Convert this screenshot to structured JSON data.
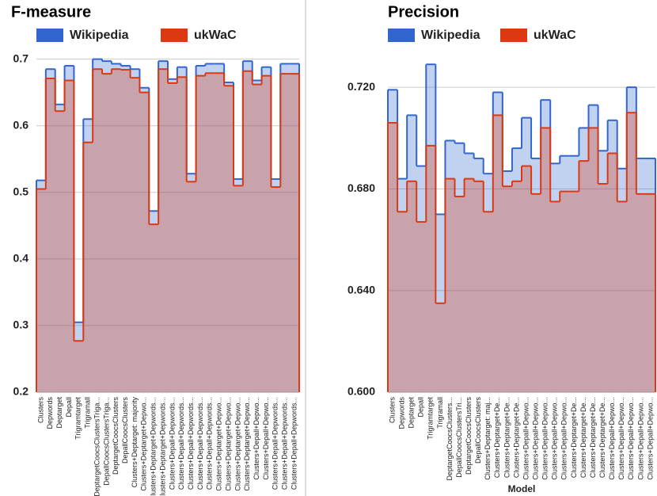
{
  "chart_data": [
    {
      "type": "stepped-area",
      "title": "F-measure",
      "legend": "top",
      "categories": [
        "Clusters",
        "Depwords",
        "Deptarget",
        "Depall",
        "Trigramtarget",
        "Trigramall",
        "DeptargetCoocsClustersTriga...",
        "DepallCoocsClustersTriga...",
        "DeptargetCoocsClusters",
        "DepallCoocsClusters",
        "Clusters+Deptarget: majority",
        "Clusters+Deptarget+Depwo...",
        "Clusters+Deptarget+Depwords...",
        "Clusters+Deptarget+Depwords...",
        "Clusters+Depall+Depwords...",
        "Clusters+Depall+Depwords...",
        "Clusters+Depall+Depwords...",
        "Clusters+Depall+Depwords...",
        "Clusters+Depall+Depwords...",
        "Clusters+Deptarget+Depwo...",
        "Clusters+Deptarget+Depwo...",
        "Clusters+Deptarget+Depwo...",
        "Clusters+Deptarget+Depwo...",
        "Clusters+Depall+Depwo...",
        "Clusters+Depall+Depwo...",
        "Clusters+Depall+Depwords...",
        "Clusters+Depall+Depwords...",
        "Clusters+Depall+Depwords..."
      ],
      "series": [
        {
          "name": "Wikipedia",
          "color": "#3366cc",
          "values": [
            0.518,
            0.685,
            0.632,
            0.69,
            0.305,
            0.61,
            0.7,
            0.697,
            0.693,
            0.69,
            0.685,
            0.657,
            0.472,
            0.697,
            0.67,
            0.688,
            0.528,
            0.69,
            0.693,
            0.693,
            0.665,
            0.52,
            0.697,
            0.668,
            0.688,
            0.52,
            0.693,
            0.693
          ]
        },
        {
          "name": "ukWaC",
          "color": "#dc3912",
          "values": [
            0.505,
            0.671,
            0.622,
            0.668,
            0.277,
            0.575,
            0.685,
            0.678,
            0.685,
            0.684,
            0.672,
            0.65,
            0.452,
            0.685,
            0.664,
            0.673,
            0.516,
            0.675,
            0.679,
            0.679,
            0.66,
            0.51,
            0.682,
            0.662,
            0.675,
            0.508,
            0.678,
            0.678
          ]
        }
      ],
      "ylim": [
        0.2,
        0.715
      ],
      "yticks": [
        0.2,
        0.3,
        0.4,
        0.5,
        0.6,
        0.7
      ],
      "grid": true
    },
    {
      "type": "stepped-area",
      "title": "Precision",
      "legend": "top",
      "x_label": "Model",
      "categories": [
        "Clusters",
        "Depwords",
        "Deptarget",
        "Depall",
        "Trigramtarget",
        "Trigramall",
        "DeptargetCoocsClusters...",
        "DepallCoocsClustersTri...",
        "DeptargetCoocsClusters",
        "DepallCoocsClusters",
        "Clusters+Deptarget: maj...",
        "Clusters+Deptarget+De...",
        "Clusters+Deptarget+De...",
        "Clusters+Deptarget+De...",
        "Clusters+Depall+Depwo...",
        "Clusters+Depall+Depwo...",
        "Clusters+Depall+Depwo...",
        "Clusters+Depall+Depwo...",
        "Clusters+Depall+Depwo...",
        "Clusters+Deptarget+De...",
        "Clusters+Deptarget+De...",
        "Clusters+Deptarget+De...",
        "Clusters+Deptarget+De...",
        "Clusters+Depall+Depwo...",
        "Clusters+Depall+Depwo...",
        "Clusters+Depall+Depwo...",
        "Clusters+Depall+Depwo...",
        "Clusters+Depall+Depwo..."
      ],
      "series": [
        {
          "name": "Wikipedia",
          "color": "#3366cc",
          "values": [
            0.719,
            0.684,
            0.709,
            0.689,
            0.729,
            0.67,
            0.699,
            0.698,
            0.694,
            0.692,
            0.686,
            0.718,
            0.687,
            0.696,
            0.708,
            0.692,
            0.715,
            0.69,
            0.693,
            0.693,
            0.704,
            0.713,
            0.695,
            0.707,
            0.688,
            0.72,
            0.692,
            0.692
          ]
        },
        {
          "name": "ukWaC",
          "color": "#dc3912",
          "values": [
            0.706,
            0.671,
            0.683,
            0.667,
            0.697,
            0.635,
            0.684,
            0.677,
            0.684,
            0.683,
            0.671,
            0.709,
            0.681,
            0.683,
            0.689,
            0.678,
            0.704,
            0.675,
            0.679,
            0.679,
            0.691,
            0.704,
            0.682,
            0.694,
            0.675,
            0.71,
            0.678,
            0.678
          ]
        }
      ],
      "ylim": [
        0.6,
        0.735
      ],
      "yticks": [
        {
          "value": 0.6,
          "label": "0.600"
        },
        {
          "value": 0.64,
          "label": "0.640"
        },
        {
          "value": 0.68,
          "label": "0.680"
        },
        {
          "value": 0.72,
          "label": "0.720"
        }
      ],
      "grid": true
    }
  ]
}
